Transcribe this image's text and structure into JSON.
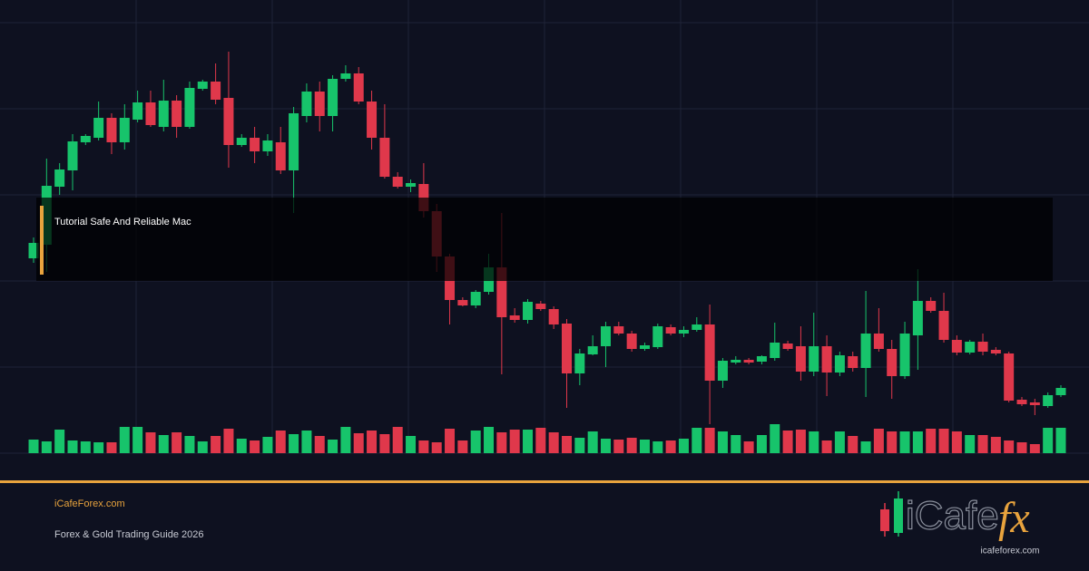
{
  "chart_data": {
    "type": "candlestick",
    "open": [
      215,
      230,
      294,
      312,
      343,
      348,
      370,
      343,
      368,
      387,
      360,
      389,
      360,
      402,
      410,
      392,
      340,
      348,
      333,
      343,
      312,
      372,
      399,
      372,
      413,
      419,
      388,
      348,
      305,
      294,
      297,
      267,
      217,
      169,
      163,
      178,
      205,
      152,
      147,
      165,
      159,
      143,
      88,
      109,
      118,
      140,
      132,
      115,
      117,
      139,
      132,
      136,
      142,
      80,
      100,
      103,
      101,
      105,
      121,
      118,
      90,
      118,
      89,
      107,
      94,
      132,
      115,
      85,
      130,
      168,
      157,
      125,
      111,
      123,
      114,
      110,
      59,
      56,
      52,
      64
    ],
    "high": [
      238,
      325,
      320,
      352,
      352,
      388,
      375,
      385,
      400,
      400,
      412,
      395,
      410,
      412,
      430,
      443,
      352,
      360,
      352,
      360,
      382,
      408,
      410,
      417,
      428,
      426,
      400,
      385,
      310,
      302,
      320,
      275,
      220,
      172,
      180,
      220,
      265,
      160,
      170,
      168,
      162,
      148,
      115,
      130,
      145,
      145,
      135,
      122,
      143,
      142,
      140,
      150,
      164,
      105,
      107,
      105,
      108,
      144,
      124,
      140,
      155,
      130,
      112,
      112,
      179,
      160,
      125,
      145,
      203,
      172,
      177,
      130,
      125,
      132,
      117,
      112,
      62,
      60,
      67,
      75
    ],
    "low": [
      210,
      200,
      285,
      290,
      340,
      345,
      330,
      335,
      365,
      360,
      355,
      348,
      358,
      400,
      385,
      315,
      338,
      320,
      328,
      308,
      265,
      365,
      355,
      355,
      410,
      385,
      335,
      303,
      292,
      288,
      260,
      200,
      142,
      162,
      160,
      175,
      87,
      144,
      143,
      157,
      137,
      50,
      75,
      108,
      95,
      130,
      112,
      113,
      115,
      130,
      128,
      134,
      32,
      72,
      98,
      98,
      98,
      102,
      113,
      80,
      85,
      63,
      85,
      90,
      62,
      112,
      60,
      82,
      92,
      155,
      122,
      108,
      109,
      108,
      108,
      56,
      52,
      42,
      50,
      62
    ],
    "close": [
      232,
      295,
      313,
      344,
      350,
      370,
      343,
      370,
      387,
      362,
      389,
      360,
      403,
      410,
      390,
      340,
      348,
      333,
      345,
      312,
      375,
      399,
      372,
      413,
      419,
      388,
      348,
      305,
      294,
      298,
      267,
      217,
      169,
      163,
      178,
      205,
      150,
      147,
      167,
      159,
      142,
      88,
      110,
      118,
      140,
      132,
      115,
      119,
      140,
      132,
      136,
      142,
      80,
      102,
      103,
      100,
      107,
      122,
      115,
      90,
      118,
      89,
      108,
      94,
      132,
      115,
      85,
      132,
      168,
      157,
      125,
      111,
      123,
      112,
      110,
      58,
      54,
      53,
      64,
      72
    ],
    "volume": [
      15,
      13,
      26,
      14,
      13,
      12,
      12,
      29,
      29,
      23,
      20,
      23,
      19,
      13,
      19,
      27,
      16,
      14,
      18,
      25,
      21,
      25,
      19,
      15,
      29,
      22,
      25,
      21,
      29,
      19,
      14,
      12,
      27,
      14,
      25,
      29,
      23,
      26,
      26,
      28,
      23,
      19,
      17,
      24,
      16,
      15,
      17,
      15,
      13,
      14,
      16,
      28,
      28,
      24,
      20,
      13,
      20,
      32,
      25,
      26,
      24,
      14,
      24,
      19,
      13,
      27,
      24,
      24,
      24,
      27,
      27,
      24,
      20,
      20,
      18,
      14,
      12,
      10,
      28,
      28
    ],
    "ylim": [
      0,
      475
    ],
    "yticks": [
      0,
      95,
      190,
      285,
      380,
      475
    ],
    "vlim": [
      0,
      95
    ],
    "grid": true,
    "up_color": "#17c46b",
    "down_color": "#e0384b"
  },
  "banner": {
    "caption": "Tutorial Safe And Reliable Mac",
    "site": "iCafeForex.com",
    "subtitle": "Forex & Gold Trading Guide 2026",
    "logo_word": "iCafe",
    "logo_fx": "fx",
    "logo_domain": "icafeforex.com"
  }
}
